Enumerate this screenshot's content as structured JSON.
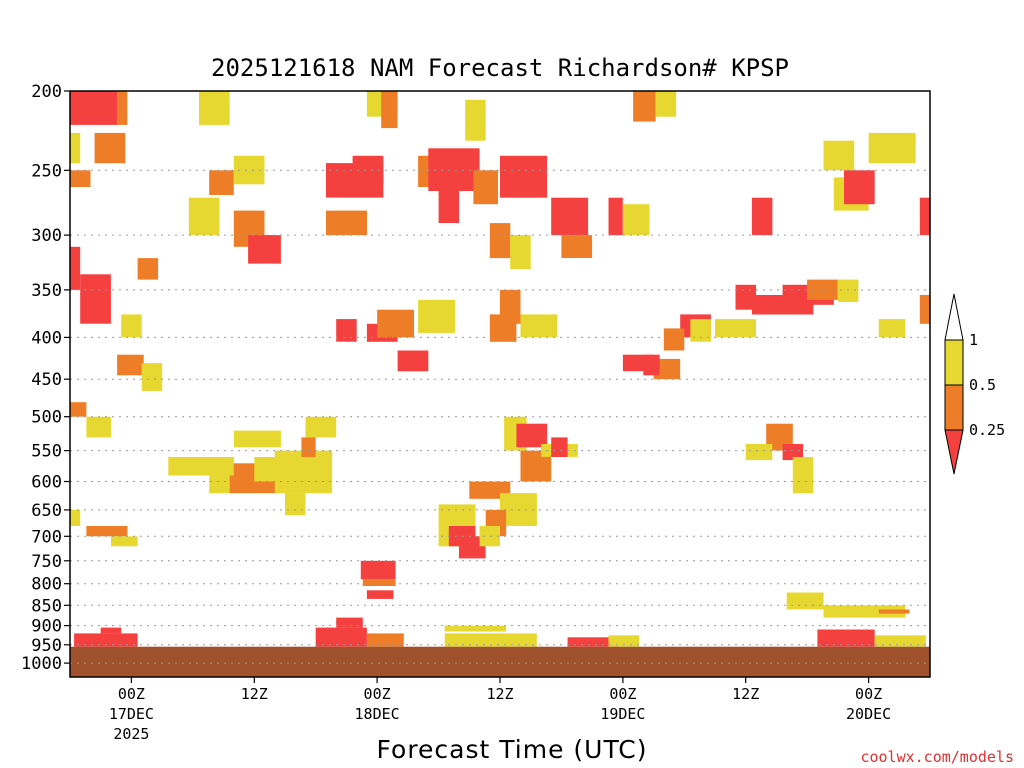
{
  "chart_data": {
    "type": "heatmap",
    "title": "2025121618 NAM Forecast Richardson# KPSP",
    "xlabel": "Forecast Time (UTC)",
    "credit": "coolwx.com/models",
    "colors": {
      "low": "#f54040",
      "mid": "#ee7d28",
      "high": "#e6d830",
      "ground": "#a0522d",
      "grid": "#999999"
    },
    "y_axis": {
      "scale": "pressure",
      "unit": "hPa",
      "range": [
        200,
        1000
      ],
      "ticks": [
        200,
        250,
        300,
        350,
        400,
        450,
        500,
        550,
        600,
        650,
        700,
        750,
        800,
        850,
        900,
        950,
        1000
      ],
      "tick_labels": [
        "200",
        "250",
        "300",
        "350",
        "400",
        "450",
        "500",
        "550",
        "600",
        "650",
        "700",
        "750",
        "800",
        "850",
        "900",
        "950",
        "1000"
      ]
    },
    "x_axis": {
      "range_hours": [
        18,
        102
      ],
      "ticks": [
        {
          "hour": 24,
          "label": "00Z",
          "date": "17DEC",
          "year": "2025"
        },
        {
          "hour": 36,
          "label": "12Z",
          "date": "",
          "year": ""
        },
        {
          "hour": 48,
          "label": "00Z",
          "date": "18DEC",
          "year": ""
        },
        {
          "hour": 60,
          "label": "12Z",
          "date": "",
          "year": ""
        },
        {
          "hour": 72,
          "label": "00Z",
          "date": "19DEC",
          "year": ""
        },
        {
          "hour": 84,
          "label": "12Z",
          "date": "",
          "year": ""
        },
        {
          "hour": 96,
          "label": "00Z",
          "date": "20DEC",
          "year": ""
        }
      ]
    },
    "legend": {
      "placement": "right",
      "labels": [
        "1",
        "0.5",
        "0.25"
      ],
      "bins": [
        {
          "range": [
            0.5,
            1
          ],
          "color": "#e6d830"
        },
        {
          "range": [
            0.25,
            0.5
          ],
          "color": "#ee7d28"
        },
        {
          "range": [
            null,
            0.25
          ],
          "color": "#f54040"
        }
      ]
    },
    "surface_pressure_hPa": 955,
    "cells": [
      {
        "t": [
          18.0,
          22.6
        ],
        "p": [
          200,
          220
        ],
        "c": "low"
      },
      {
        "t": [
          22.6,
          23.6
        ],
        "p": [
          200,
          220
        ],
        "c": "mid"
      },
      {
        "t": [
          30.6,
          33.6
        ],
        "p": [
          200,
          220
        ],
        "c": "high"
      },
      {
        "t": [
          18.0,
          19.0
        ],
        "p": [
          225,
          245
        ],
        "c": "high"
      },
      {
        "t": [
          20.4,
          23.4
        ],
        "p": [
          225,
          245
        ],
        "c": "mid"
      },
      {
        "t": [
          18.0,
          20.0
        ],
        "p": [
          250,
          262
        ],
        "c": "mid"
      },
      {
        "t": [
          18.0,
          19.0
        ],
        "p": [
          310,
          350
        ],
        "c": "low"
      },
      {
        "t": [
          19.0,
          22.0
        ],
        "p": [
          335,
          385
        ],
        "c": "low"
      },
      {
        "t": [
          24.6,
          26.6
        ],
        "p": [
          320,
          340
        ],
        "c": "mid"
      },
      {
        "t": [
          22.6,
          25.2
        ],
        "p": [
          420,
          445
        ],
        "c": "mid"
      },
      {
        "t": [
          25.0,
          27.0
        ],
        "p": [
          430,
          465
        ],
        "c": "high"
      },
      {
        "t": [
          23.0,
          25.0
        ],
        "p": [
          375,
          400
        ],
        "c": "high"
      },
      {
        "t": [
          29.6,
          32.6
        ],
        "p": [
          270,
          300
        ],
        "c": "high"
      },
      {
        "t": [
          34.0,
          37.0
        ],
        "p": [
          280,
          310
        ],
        "c": "mid"
      },
      {
        "t": [
          35.4,
          38.6
        ],
        "p": [
          300,
          325
        ],
        "c": "low"
      },
      {
        "t": [
          31.6,
          34.0
        ],
        "p": [
          250,
          268
        ],
        "c": "mid"
      },
      {
        "t": [
          34.0,
          37.0
        ],
        "p": [
          240,
          260
        ],
        "c": "high"
      },
      {
        "t": [
          43.0,
          48.6
        ],
        "p": [
          245,
          270
        ],
        "c": "low"
      },
      {
        "t": [
          45.6,
          48.6
        ],
        "p": [
          240,
          260
        ],
        "c": "low"
      },
      {
        "t": [
          43.0,
          47.0
        ],
        "p": [
          280,
          300
        ],
        "c": "mid"
      },
      {
        "t": [
          47.0,
          50.0
        ],
        "p": [
          200,
          215
        ],
        "c": "high"
      },
      {
        "t": [
          48.4,
          50.0
        ],
        "p": [
          200,
          222
        ],
        "c": "mid"
      },
      {
        "t": [
          52.0,
          55.0
        ],
        "p": [
          240,
          262
        ],
        "c": "mid"
      },
      {
        "t": [
          53.0,
          58.0
        ],
        "p": [
          235,
          265
        ],
        "c": "low"
      },
      {
        "t": [
          54.0,
          56.0
        ],
        "p": [
          265,
          290
        ],
        "c": "low"
      },
      {
        "t": [
          57.4,
          59.8
        ],
        "p": [
          250,
          275
        ],
        "c": "mid"
      },
      {
        "t": [
          56.6,
          58.6
        ],
        "p": [
          205,
          230
        ],
        "c": "high"
      },
      {
        "t": [
          60.0,
          64.6
        ],
        "p": [
          240,
          270
        ],
        "c": "low"
      },
      {
        "t": [
          59.0,
          61.0
        ],
        "p": [
          290,
          320
        ],
        "c": "mid"
      },
      {
        "t": [
          61.0,
          63.0
        ],
        "p": [
          300,
          330
        ],
        "c": "high"
      },
      {
        "t": [
          65.0,
          68.6
        ],
        "p": [
          270,
          300
        ],
        "c": "low"
      },
      {
        "t": [
          66.0,
          69.0
        ],
        "p": [
          300,
          320
        ],
        "c": "mid"
      },
      {
        "t": [
          70.6,
          72.0
        ],
        "p": [
          270,
          300
        ],
        "c": "low"
      },
      {
        "t": [
          72.0,
          74.6
        ],
        "p": [
          275,
          300
        ],
        "c": "high"
      },
      {
        "t": [
          73.0,
          75.2
        ],
        "p": [
          200,
          218
        ],
        "c": "mid"
      },
      {
        "t": [
          75.2,
          77.2
        ],
        "p": [
          200,
          215
        ],
        "c": "high"
      },
      {
        "t": [
          84.6,
          86.6
        ],
        "p": [
          270,
          300
        ],
        "c": "low"
      },
      {
        "t": [
          91.6,
          94.6
        ],
        "p": [
          230,
          250
        ],
        "c": "high"
      },
      {
        "t": [
          92.6,
          96.0
        ],
        "p": [
          255,
          280
        ],
        "c": "high"
      },
      {
        "t": [
          93.6,
          96.6
        ],
        "p": [
          250,
          275
        ],
        "c": "low"
      },
      {
        "t": [
          96.0,
          100.6
        ],
        "p": [
          225,
          245
        ],
        "c": "high"
      },
      {
        "t": [
          101.0,
          102.0
        ],
        "p": [
          270,
          300
        ],
        "c": "low"
      },
      {
        "t": [
          84.6,
          90.6
        ],
        "p": [
          355,
          375
        ],
        "c": "low"
      },
      {
        "t": [
          87.6,
          92.6
        ],
        "p": [
          345,
          365
        ],
        "c": "low"
      },
      {
        "t": [
          83.0,
          85.0
        ],
        "p": [
          345,
          370
        ],
        "c": "low"
      },
      {
        "t": [
          90.0,
          93.0
        ],
        "p": [
          340,
          360
        ],
        "c": "mid"
      },
      {
        "t": [
          93.0,
          95.0
        ],
        "p": [
          340,
          362
        ],
        "c": "high"
      },
      {
        "t": [
          77.6,
          80.6
        ],
        "p": [
          375,
          400
        ],
        "c": "low"
      },
      {
        "t": [
          76.0,
          78.0
        ],
        "p": [
          390,
          415
        ],
        "c": "mid"
      },
      {
        "t": [
          78.6,
          80.6
        ],
        "p": [
          380,
          405
        ],
        "c": "high"
      },
      {
        "t": [
          81.0,
          85.0
        ],
        "p": [
          380,
          400
        ],
        "c": "high"
      },
      {
        "t": [
          97.0,
          99.6
        ],
        "p": [
          380,
          400
        ],
        "c": "high"
      },
      {
        "t": [
          101.0,
          102.0
        ],
        "p": [
          355,
          385
        ],
        "c": "mid"
      },
      {
        "t": [
          72.0,
          75.0
        ],
        "p": [
          420,
          440
        ],
        "c": "low"
      },
      {
        "t": [
          75.0,
          77.6
        ],
        "p": [
          425,
          450
        ],
        "c": "mid"
      },
      {
        "t": [
          74.0,
          75.6
        ],
        "p": [
          420,
          445
        ],
        "c": "low"
      },
      {
        "t": [
          44.0,
          46.0
        ],
        "p": [
          380,
          405
        ],
        "c": "low"
      },
      {
        "t": [
          47.0,
          50.0
        ],
        "p": [
          385,
          405
        ],
        "c": "low"
      },
      {
        "t": [
          48.0,
          51.6
        ],
        "p": [
          370,
          400
        ],
        "c": "mid"
      },
      {
        "t": [
          50.0,
          53.0
        ],
        "p": [
          415,
          440
        ],
        "c": "low"
      },
      {
        "t": [
          52.0,
          55.6
        ],
        "p": [
          360,
          395
        ],
        "c": "high"
      },
      {
        "t": [
          59.0,
          61.6
        ],
        "p": [
          375,
          405
        ],
        "c": "mid"
      },
      {
        "t": [
          60.0,
          62.0
        ],
        "p": [
          350,
          385
        ],
        "c": "mid"
      },
      {
        "t": [
          62.0,
          65.6
        ],
        "p": [
          375,
          400
        ],
        "c": "high"
      },
      {
        "t": [
          31.6,
          34.0
        ],
        "p": [
          560,
          620
        ],
        "c": "high"
      },
      {
        "t": [
          33.6,
          39.0
        ],
        "p": [
          570,
          620
        ],
        "c": "mid"
      },
      {
        "t": [
          36.0,
          40.0
        ],
        "p": [
          560,
          600
        ],
        "c": "high"
      },
      {
        "t": [
          38.0,
          43.6
        ],
        "p": [
          550,
          620
        ],
        "c": "high"
      },
      {
        "t": [
          34.0,
          38.6
        ],
        "p": [
          520,
          545
        ],
        "c": "high"
      },
      {
        "t": [
          27.6,
          34.0
        ],
        "p": [
          560,
          590
        ],
        "c": "high"
      },
      {
        "t": [
          39.0,
          41.0
        ],
        "p": [
          620,
          660
        ],
        "c": "high"
      },
      {
        "t": [
          41.0,
          44.0
        ],
        "p": [
          500,
          530
        ],
        "c": "high"
      },
      {
        "t": [
          40.6,
          42.0
        ],
        "p": [
          530,
          560
        ],
        "c": "mid"
      },
      {
        "t": [
          60.4,
          62.6
        ],
        "p": [
          500,
          550
        ],
        "c": "high"
      },
      {
        "t": [
          61.6,
          64.6
        ],
        "p": [
          510,
          545
        ],
        "c": "low"
      },
      {
        "t": [
          62.0,
          65.0
        ],
        "p": [
          550,
          600
        ],
        "c": "mid"
      },
      {
        "t": [
          64.0,
          67.6
        ],
        "p": [
          540,
          560
        ],
        "c": "high"
      },
      {
        "t": [
          65.0,
          66.6
        ],
        "p": [
          530,
          560
        ],
        "c": "low"
      },
      {
        "t": [
          57.0,
          61.0
        ],
        "p": [
          600,
          630
        ],
        "c": "mid"
      },
      {
        "t": [
          60.0,
          63.6
        ],
        "p": [
          620,
          680
        ],
        "c": "high"
      },
      {
        "t": [
          58.6,
          60.6
        ],
        "p": [
          650,
          700
        ],
        "c": "mid"
      },
      {
        "t": [
          54.0,
          57.6
        ],
        "p": [
          640,
          720
        ],
        "c": "high"
      },
      {
        "t": [
          55.0,
          57.6
        ],
        "p": [
          680,
          720
        ],
        "c": "low"
      },
      {
        "t": [
          56.0,
          58.6
        ],
        "p": [
          700,
          745
        ],
        "c": "low"
      },
      {
        "t": [
          58.0,
          60.0
        ],
        "p": [
          680,
          720
        ],
        "c": "high"
      },
      {
        "t": [
          86.0,
          88.6
        ],
        "p": [
          510,
          550
        ],
        "c": "mid"
      },
      {
        "t": [
          87.6,
          89.6
        ],
        "p": [
          540,
          565
        ],
        "c": "low"
      },
      {
        "t": [
          84.0,
          86.6
        ],
        "p": [
          540,
          565
        ],
        "c": "high"
      },
      {
        "t": [
          88.6,
          90.6
        ],
        "p": [
          560,
          620
        ],
        "c": "high"
      },
      {
        "t": [
          18.0,
          19.6
        ],
        "p": [
          480,
          500
        ],
        "c": "mid"
      },
      {
        "t": [
          19.6,
          22.0
        ],
        "p": [
          500,
          530
        ],
        "c": "high"
      },
      {
        "t": [
          18.0,
          19.0
        ],
        "p": [
          650,
          680
        ],
        "c": "high"
      },
      {
        "t": [
          19.6,
          23.6
        ],
        "p": [
          680,
          700
        ],
        "c": "mid"
      },
      {
        "t": [
          22.0,
          24.6
        ],
        "p": [
          700,
          720
        ],
        "c": "high"
      },
      {
        "t": [
          46.4,
          49.8
        ],
        "p": [
          750,
          790
        ],
        "c": "low"
      },
      {
        "t": [
          46.6,
          49.8
        ],
        "p": [
          790,
          805
        ],
        "c": "mid"
      },
      {
        "t": [
          47.0,
          49.6
        ],
        "p": [
          815,
          835
        ],
        "c": "low"
      },
      {
        "t": [
          88.0,
          91.6
        ],
        "p": [
          820,
          860
        ],
        "c": "high"
      },
      {
        "t": [
          91.6,
          99.6
        ],
        "p": [
          850,
          880
        ],
        "c": "high"
      },
      {
        "t": [
          97.0,
          100.0
        ],
        "p": [
          860,
          870
        ],
        "c": "mid"
      },
      {
        "t": [
          18.4,
          24.6
        ],
        "p": [
          920,
          955
        ],
        "c": "low"
      },
      {
        "t": [
          21.0,
          23.0
        ],
        "p": [
          905,
          920
        ],
        "c": "low"
      },
      {
        "t": [
          42.0,
          47.0
        ],
        "p": [
          905,
          955
        ],
        "c": "low"
      },
      {
        "t": [
          44.0,
          46.6
        ],
        "p": [
          880,
          905
        ],
        "c": "low"
      },
      {
        "t": [
          47.0,
          50.6
        ],
        "p": [
          920,
          955
        ],
        "c": "mid"
      },
      {
        "t": [
          54.6,
          63.6
        ],
        "p": [
          920,
          955
        ],
        "c": "high"
      },
      {
        "t": [
          54.6,
          60.6
        ],
        "p": [
          900,
          915
        ],
        "c": "high"
      },
      {
        "t": [
          66.6,
          71.6
        ],
        "p": [
          930,
          955
        ],
        "c": "low"
      },
      {
        "t": [
          70.6,
          73.6
        ],
        "p": [
          925,
          955
        ],
        "c": "high"
      },
      {
        "t": [
          91.0,
          96.6
        ],
        "p": [
          910,
          955
        ],
        "c": "low"
      },
      {
        "t": [
          96.6,
          101.6
        ],
        "p": [
          925,
          955
        ],
        "c": "high"
      }
    ]
  }
}
